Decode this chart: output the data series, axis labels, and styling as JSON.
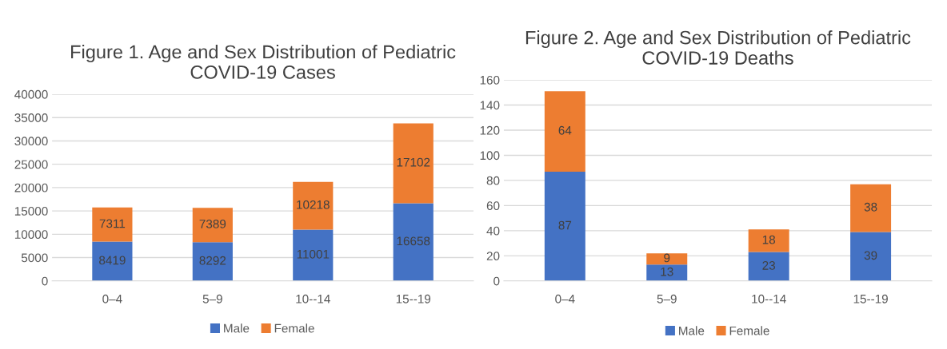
{
  "chart_data": [
    {
      "type": "bar",
      "title": "Figure 1. Age and Sex Distribution of Pediatric\nCOVID-19 Cases",
      "categories": [
        "0–4",
        "5–9",
        "10--14",
        "15--19"
      ],
      "stacked": true,
      "data_labels": true,
      "grid": "y",
      "legend": "bottom",
      "ylim": [
        0,
        40000
      ],
      "yticks": [
        0,
        5000,
        10000,
        15000,
        20000,
        25000,
        30000,
        35000,
        40000
      ],
      "series": [
        {
          "name": "Male",
          "color": "#4472c4",
          "values": [
            8419,
            8292,
            11001,
            16658
          ]
        },
        {
          "name": "Female",
          "color": "#ed7d31",
          "values": [
            7311,
            7389,
            10218,
            17102
          ]
        }
      ]
    },
    {
      "type": "bar",
      "title": "Figure 2. Age and Sex Distribution of Pediatric\nCOVID-19 Deaths",
      "categories": [
        "0–4",
        "5–9",
        "10--14",
        "15--19"
      ],
      "stacked": true,
      "data_labels": true,
      "grid": "y",
      "legend": "bottom",
      "ylim": [
        0,
        160
      ],
      "yticks": [
        0,
        20,
        40,
        60,
        80,
        100,
        120,
        140,
        160
      ],
      "series": [
        {
          "name": "Male",
          "color": "#4472c4",
          "values": [
            87,
            13,
            23,
            39
          ]
        },
        {
          "name": "Female",
          "color": "#ed7d31",
          "values": [
            64,
            9,
            18,
            38
          ]
        }
      ]
    }
  ]
}
